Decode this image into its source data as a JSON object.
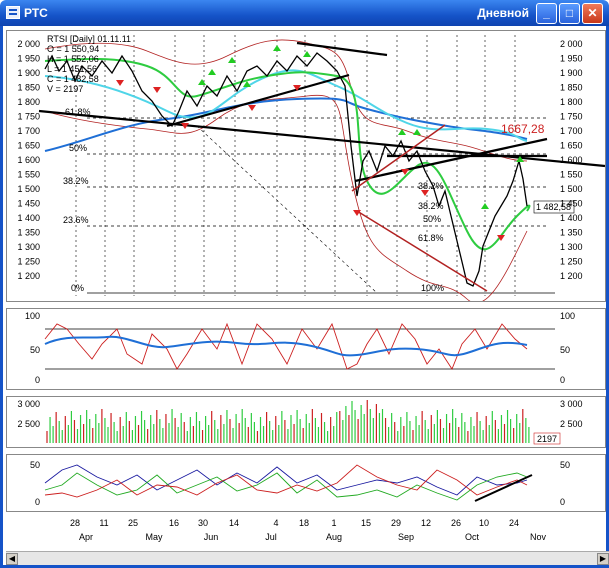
{
  "window": {
    "title": "РТС",
    "period": "Дневной",
    "min_symbol": "_",
    "max_symbol": "□",
    "close_symbol": "✕"
  },
  "price": {
    "header": "RTSI [Daily] 01.11.11",
    "ohlc": [
      "O = 1 550,94",
      "H = 1 552,06",
      "L = 1 451,56",
      "C = 1 482,58",
      "V = 2197"
    ],
    "y_ticks": [
      "2 000",
      "1 950",
      "1 900",
      "1 850",
      "1 800",
      "1 750",
      "1 700",
      "1 650",
      "1 600",
      "1 550",
      "1 500",
      "1 450",
      "1 400",
      "1 350",
      "1 300",
      "1 250",
      "1 200"
    ],
    "y_ticks_right": [
      "2 000",
      "1 950",
      "1 900",
      "1 850",
      "1 800",
      "1 750",
      "1 700",
      "1 650",
      "1 600",
      "1 550",
      "1 500",
      "1 450",
      "1 400",
      "1 350",
      "1 300",
      "1 250",
      "1 200"
    ],
    "fib_left": [
      "61.8%",
      "50%",
      "38.2%",
      "23.6%",
      "0%"
    ],
    "fib_right": [
      "38.2%",
      "50%",
      "38.2%",
      "61.8%",
      "100%"
    ],
    "annotation": "1667,28",
    "last_price": "1 482,58"
  },
  "osc1": {
    "ticks": [
      "100",
      "50",
      "0"
    ],
    "ticks_right": [
      "100",
      "50",
      "0"
    ]
  },
  "volume": {
    "ticks": [
      "3 000",
      "2 500"
    ],
    "ticks_right": [
      "3 000",
      "2 500"
    ],
    "last": "2197"
  },
  "osc2": {
    "ticks": [
      "50",
      "0"
    ],
    "ticks_right": [
      "50",
      "0"
    ]
  },
  "xaxis": {
    "days": [
      "28",
      "11",
      "25",
      "16",
      "30",
      "14",
      "4",
      "18",
      "1",
      "15",
      "29",
      "12",
      "26",
      "10",
      "24"
    ],
    "months": [
      "Apr",
      "May",
      "Jun",
      "Jul",
      "Aug",
      "Sep",
      "Oct",
      "Nov"
    ]
  },
  "colors": {
    "price": "#000000",
    "ma_fast": "#2ecc40",
    "ma_slow": "#4fd5e8",
    "ma_long": "#1f6fd6",
    "bands": "#b22222",
    "trend_red": "#cc2020",
    "buy": "#22cc22",
    "sell": "#dd2222"
  }
}
